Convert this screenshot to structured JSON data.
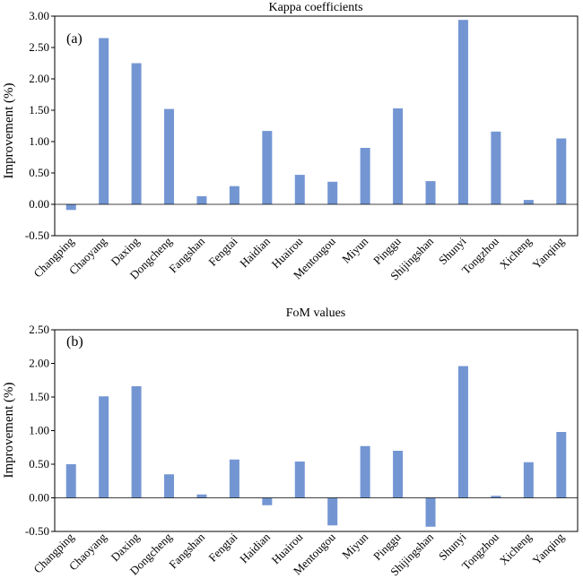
{
  "chart_data": [
    {
      "type": "bar",
      "title": "Kappa coefficients",
      "panel_label": "(a)",
      "ylabel": "Improvement (%)",
      "xlabel": "",
      "ylim": [
        -0.5,
        3.0
      ],
      "yticks": [
        "3.00",
        "2.50",
        "2.00",
        "1.50",
        "1.00",
        "0.50",
        "0.00",
        "-0.50"
      ],
      "grid": false,
      "categories": [
        "Changping",
        "Chaoyang",
        "Daxing",
        "Dongcheng",
        "Fangshan",
        "Fengtai",
        "Haidian",
        "Huairou",
        "Mentougou",
        "Miyun",
        "Pinggu",
        "Shijingshan",
        "Shunyi",
        "Tongzhou",
        "Xicheng",
        "Yanqing"
      ],
      "values": [
        -0.09,
        2.65,
        2.25,
        1.52,
        0.13,
        0.29,
        1.17,
        0.47,
        0.36,
        0.9,
        1.53,
        0.37,
        2.94,
        1.16,
        0.07,
        1.05
      ],
      "color": "#7396d3"
    },
    {
      "type": "bar",
      "title": "FoM values",
      "panel_label": "(b)",
      "ylabel": "Improvement (%)",
      "xlabel": "",
      "ylim": [
        -0.5,
        2.5
      ],
      "yticks": [
        "2.50",
        "2.00",
        "1.50",
        "1.00",
        "0.50",
        "0.00",
        "-0.50"
      ],
      "grid": false,
      "categories": [
        "Changping",
        "Chaoyang",
        "Daxing",
        "Dongcheng",
        "Fangshan",
        "Fengtai",
        "Haidian",
        "Huairou",
        "Mentougou",
        "Miyun",
        "Pinggu",
        "Shijingshan",
        "Shunyi",
        "Tongzhou",
        "Xicheng",
        "Yanqing"
      ],
      "values": [
        0.5,
        1.51,
        1.66,
        0.35,
        0.05,
        0.57,
        -0.11,
        0.54,
        -0.41,
        0.77,
        0.7,
        -0.43,
        1.96,
        0.03,
        0.53,
        0.98
      ],
      "color": "#7396d3"
    }
  ]
}
